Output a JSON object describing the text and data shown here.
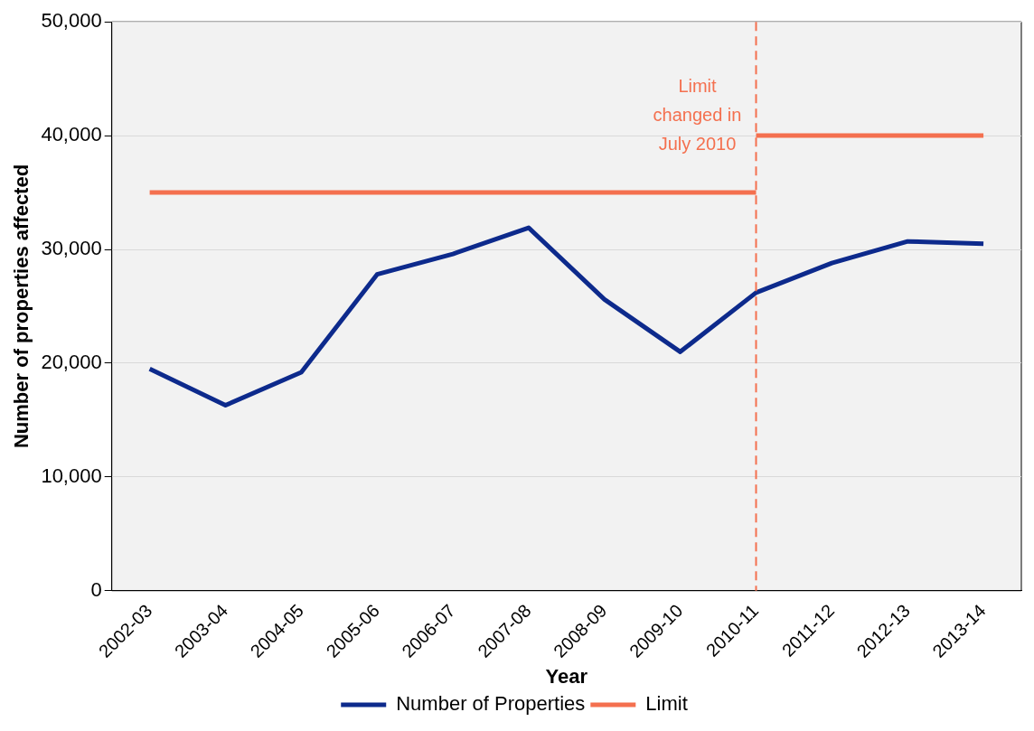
{
  "chart_data": {
    "type": "line",
    "xlabel": "Year",
    "ylabel": "Number of properties affected",
    "categories": [
      "2002-03",
      "2003-04",
      "2004-05",
      "2005-06",
      "2006-07",
      "2007-08",
      "2008-09",
      "2009-10",
      "2010-11",
      "2011-12",
      "2012-13",
      "2013-14"
    ],
    "series": [
      {
        "name": "Number of Properties",
        "color": "#0d2a8c",
        "values": [
          19500,
          16300,
          19200,
          27800,
          29600,
          31900,
          25600,
          21000,
          26200,
          28800,
          30700,
          30500
        ]
      },
      {
        "name": "Limit",
        "color": "#f4704f",
        "values": [
          35000,
          35000,
          35000,
          35000,
          35000,
          35000,
          35000,
          35000,
          35000,
          null,
          null,
          null
        ]
      },
      {
        "color": "#f4704f",
        "values": [
          null,
          null,
          null,
          null,
          null,
          null,
          null,
          null,
          40000,
          40000,
          40000,
          40000
        ]
      }
    ],
    "ylim": [
      0,
      50000
    ],
    "yticks": [
      {
        "value": 0,
        "label": "0"
      },
      {
        "value": 10000,
        "label": "10,000"
      },
      {
        "value": 20000,
        "label": "20,000"
      },
      {
        "value": 30000,
        "label": "30,000"
      },
      {
        "value": 40000,
        "label": "40,000"
      },
      {
        "value": 50000,
        "label": "50,000"
      }
    ],
    "ref_lines": [
      {
        "axis": "x",
        "value": "2010-11",
        "label": "Limit changed in July 2010",
        "color": "#f4704f",
        "line_style": "dashed"
      }
    ],
    "grid": "y",
    "legend": "bottom",
    "marker": "none",
    "line_style": "solid"
  }
}
